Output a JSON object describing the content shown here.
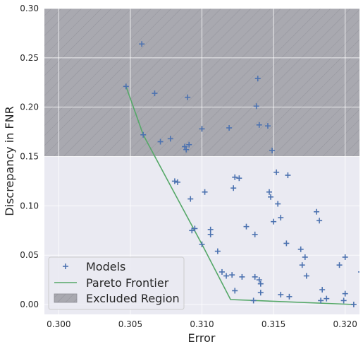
{
  "chart_data": {
    "type": "scatter",
    "xlabel": "Error",
    "ylabel": "Discrepancy in FNR",
    "xlim": [
      0.299,
      0.321
    ],
    "ylim": [
      -0.01,
      0.3
    ],
    "x_ticks": [
      "0.300",
      "0.305",
      "0.310",
      "0.315",
      "0.320"
    ],
    "y_ticks": [
      "0.00",
      "0.05",
      "0.10",
      "0.15",
      "0.20",
      "0.25",
      "0.30"
    ],
    "grid": true,
    "legend_position": "lower-left",
    "excluded_region": {
      "name": "Excluded Region",
      "y_from": 0.15,
      "y_to": 0.3,
      "color": "#a9a9b0"
    },
    "series": [
      {
        "name": "Models",
        "marker": "plus",
        "color": "#4c72b0",
        "points": [
          [
            0.3058,
            0.264
          ],
          [
            0.3047,
            0.221
          ],
          [
            0.3067,
            0.214
          ],
          [
            0.3059,
            0.172
          ],
          [
            0.3071,
            0.165
          ],
          [
            0.3078,
            0.168
          ],
          [
            0.309,
            0.21
          ],
          [
            0.3088,
            0.16
          ],
          [
            0.3089,
            0.157
          ],
          [
            0.3091,
            0.162
          ],
          [
            0.31,
            0.178
          ],
          [
            0.3119,
            0.179
          ],
          [
            0.3139,
            0.229
          ],
          [
            0.3138,
            0.201
          ],
          [
            0.314,
            0.182
          ],
          [
            0.3146,
            0.181
          ],
          [
            0.3149,
            0.156
          ],
          [
            0.3081,
            0.125
          ],
          [
            0.3083,
            0.124
          ],
          [
            0.3102,
            0.114
          ],
          [
            0.3092,
            0.107
          ],
          [
            0.3123,
            0.129
          ],
          [
            0.3126,
            0.128
          ],
          [
            0.3122,
            0.118
          ],
          [
            0.3152,
            0.134
          ],
          [
            0.316,
            0.131
          ],
          [
            0.3147,
            0.114
          ],
          [
            0.3148,
            0.109
          ],
          [
            0.3153,
            0.102
          ],
          [
            0.3155,
            0.088
          ],
          [
            0.315,
            0.084
          ],
          [
            0.3093,
            0.075
          ],
          [
            0.3095,
            0.077
          ],
          [
            0.3106,
            0.076
          ],
          [
            0.3106,
            0.071
          ],
          [
            0.3131,
            0.079
          ],
          [
            0.3137,
            0.071
          ],
          [
            0.31,
            0.061
          ],
          [
            0.3111,
            0.054
          ],
          [
            0.3159,
            0.062
          ],
          [
            0.3169,
            0.056
          ],
          [
            0.3172,
            0.048
          ],
          [
            0.317,
            0.04
          ],
          [
            0.318,
            0.094
          ],
          [
            0.3182,
            0.085
          ],
          [
            0.3173,
            0.029
          ],
          [
            0.3114,
            0.033
          ],
          [
            0.3117,
            0.029
          ],
          [
            0.3121,
            0.03
          ],
          [
            0.3128,
            0.028
          ],
          [
            0.3137,
            0.028
          ],
          [
            0.314,
            0.025
          ],
          [
            0.3141,
            0.021
          ],
          [
            0.3123,
            0.014
          ],
          [
            0.3141,
            0.012
          ],
          [
            0.3155,
            0.01
          ],
          [
            0.3161,
            0.008
          ],
          [
            0.3136,
            0.004
          ],
          [
            0.3183,
            0.004
          ],
          [
            0.3184,
            0.015
          ],
          [
            0.3187,
            0.006
          ],
          [
            0.3196,
            0.04
          ],
          [
            0.32,
            0.048
          ],
          [
            0.32,
            0.011
          ],
          [
            0.3199,
            0.004
          ],
          [
            0.3206,
            0.0
          ],
          [
            0.3211,
            0.033
          ]
        ]
      },
      {
        "name": "Pareto Frontier",
        "marker": "line",
        "color": "#55a868",
        "points": [
          [
            0.3047,
            0.221
          ],
          [
            0.3059,
            0.172
          ],
          [
            0.31,
            0.061
          ],
          [
            0.312,
            0.005
          ],
          [
            0.3206,
            0.0
          ]
        ]
      }
    ]
  }
}
